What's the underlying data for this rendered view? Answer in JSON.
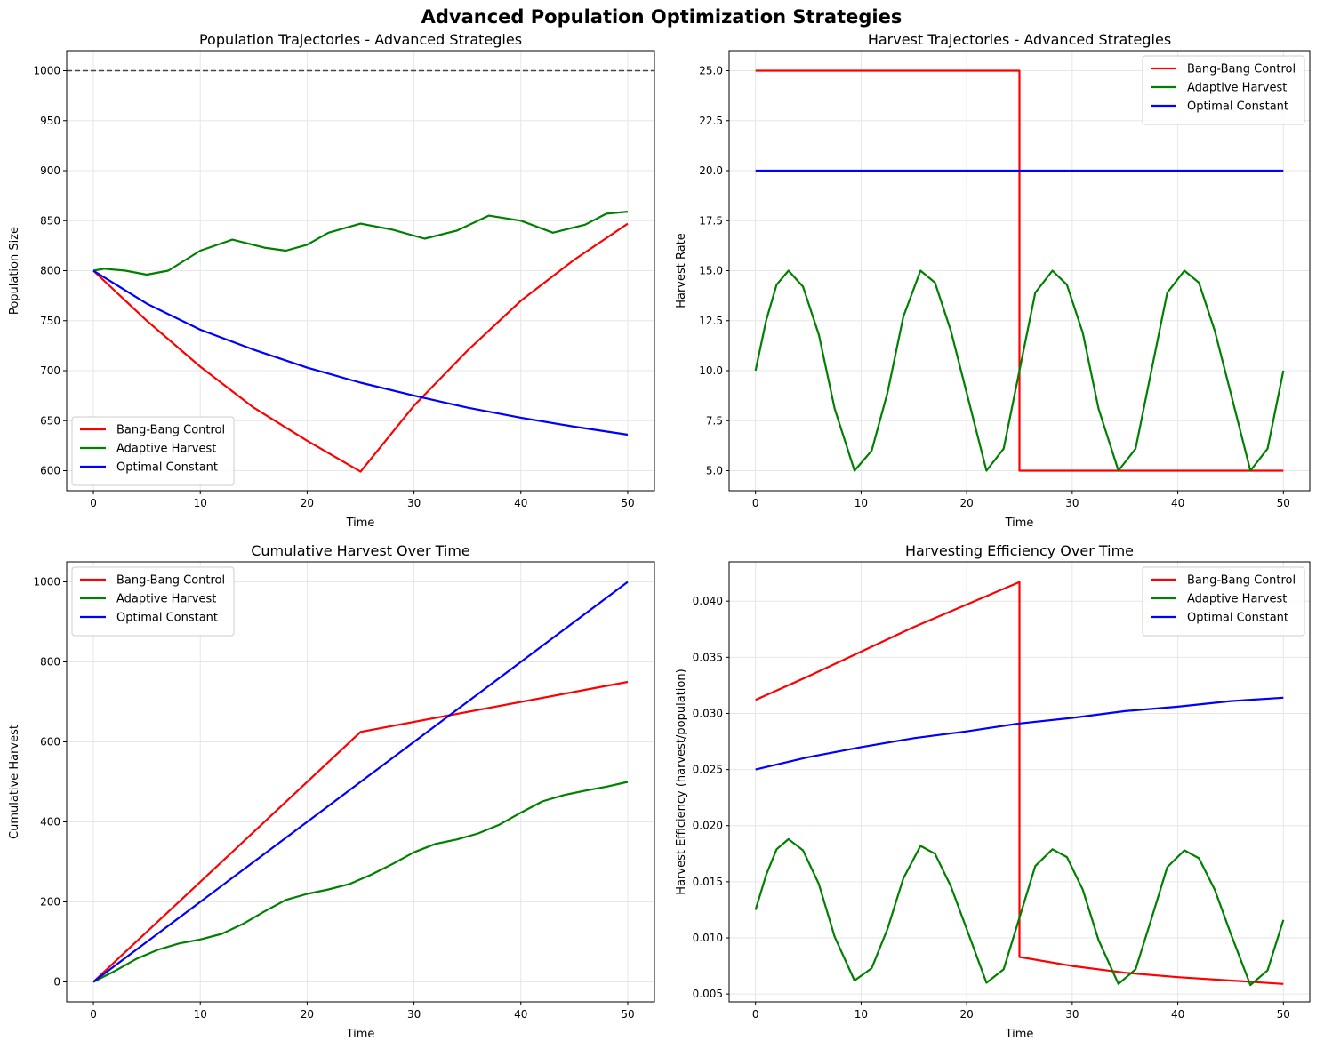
{
  "suptitle": "Advanced Population Optimization Strategies",
  "colors": {
    "bang_bang": "#ff0000",
    "adaptive": "#008000",
    "optimal": "#0000ff",
    "reference": "#444444"
  },
  "chart_data": [
    {
      "type": "line",
      "title": "Population Trajectories - Advanced Strategies",
      "xlabel": "Time",
      "ylabel": "Population Size",
      "xlim": [
        -2.5,
        52.5
      ],
      "ylim": [
        580,
        1020
      ],
      "xticks": [
        0,
        10,
        20,
        30,
        40,
        50
      ],
      "yticks": [
        600,
        650,
        700,
        750,
        800,
        850,
        900,
        950,
        1000
      ],
      "grid": true,
      "legend_position": "lower-left",
      "reference_line": {
        "y": 1000,
        "style": "dashed"
      },
      "series": [
        {
          "name": "Bang-Bang Control",
          "color": "#ff0000",
          "x": [
            0,
            5,
            10,
            15,
            20,
            25,
            30,
            35,
            40,
            45,
            50
          ],
          "y": [
            800,
            750,
            704,
            663,
            630,
            599,
            665,
            720,
            770,
            811,
            847
          ]
        },
        {
          "name": "Adaptive Harvest",
          "color": "#008000",
          "x": [
            0,
            1,
            3,
            5,
            7,
            10,
            13,
            16,
            18,
            20,
            22,
            25,
            28,
            31,
            34,
            37,
            40,
            43,
            46,
            48,
            50
          ],
          "y": [
            800,
            802,
            800,
            796,
            800,
            820,
            831,
            823,
            820,
            826,
            838,
            847,
            841,
            832,
            840,
            855,
            850,
            838,
            846,
            857,
            859
          ]
        },
        {
          "name": "Optimal Constant",
          "color": "#0000ff",
          "x": [
            0,
            5,
            10,
            15,
            20,
            25,
            30,
            35,
            40,
            45,
            50
          ],
          "y": [
            800,
            767,
            741,
            721,
            703,
            688,
            675,
            663,
            653,
            644,
            636
          ]
        }
      ]
    },
    {
      "type": "line",
      "title": "Harvest Trajectories - Advanced Strategies",
      "xlabel": "Time",
      "ylabel": "Harvest Rate",
      "xlim": [
        -2.5,
        52.5
      ],
      "ylim": [
        4.0,
        26.0
      ],
      "xticks": [
        0,
        10,
        20,
        30,
        40,
        50
      ],
      "yticks": [
        "5.0",
        "7.5",
        "10.0",
        "12.5",
        "15.0",
        "17.5",
        "20.0",
        "22.5",
        "25.0"
      ],
      "grid": true,
      "legend_position": "top-right",
      "series": [
        {
          "name": "Bang-Bang Control",
          "color": "#ff0000",
          "x": [
            0,
            25,
            25,
            50
          ],
          "y": [
            25,
            25,
            5,
            5
          ]
        },
        {
          "name": "Adaptive Harvest",
          "color": "#008000",
          "x": [
            0,
            1,
            2,
            3.125,
            4.5,
            6,
            7.5,
            9.375,
            11,
            12.5,
            14,
            15.625,
            17,
            18.5,
            20,
            21.875,
            23.5,
            25,
            26.5,
            28.125,
            29.5,
            31,
            32.5,
            34.375,
            36,
            37.5,
            39,
            40.625,
            42,
            43.5,
            45,
            46.875,
            48.5,
            50
          ],
          "y": [
            10,
            12.5,
            14.3,
            15,
            14.2,
            11.8,
            8.1,
            5,
            6,
            8.9,
            12.7,
            15,
            14.4,
            12.0,
            8.9,
            5,
            6.1,
            10,
            13.9,
            15,
            14.3,
            11.9,
            8.1,
            5,
            6.1,
            10,
            13.9,
            15,
            14.4,
            12.0,
            8.9,
            5,
            6.1,
            10
          ]
        },
        {
          "name": "Optimal Constant",
          "color": "#0000ff",
          "x": [
            0,
            50
          ],
          "y": [
            20,
            20
          ]
        }
      ]
    },
    {
      "type": "line",
      "title": "Cumulative Harvest Over Time",
      "xlabel": "Time",
      "ylabel": "Cumulative Harvest",
      "xlim": [
        -2.5,
        52.5
      ],
      "ylim": [
        -50,
        1050
      ],
      "xticks": [
        0,
        10,
        20,
        30,
        40,
        50
      ],
      "yticks": [
        0,
        200,
        400,
        600,
        800,
        1000
      ],
      "grid": true,
      "legend_position": "top-left",
      "series": [
        {
          "name": "Bang-Bang Control",
          "color": "#ff0000",
          "x": [
            0,
            25,
            50
          ],
          "y": [
            0,
            625,
            750
          ]
        },
        {
          "name": "Adaptive Harvest",
          "color": "#008000",
          "x": [
            0,
            2,
            4,
            6,
            8,
            10,
            12,
            14,
            16,
            18,
            20,
            22,
            24,
            26,
            28,
            30,
            32,
            34,
            36,
            38,
            40,
            42,
            44,
            46,
            48,
            50
          ],
          "y": [
            0,
            27,
            57,
            80,
            96,
            106,
            120,
            145,
            176,
            205,
            220,
            231,
            245,
            268,
            295,
            324,
            345,
            356,
            371,
            393,
            423,
            451,
            467,
            478,
            488,
            500
          ]
        },
        {
          "name": "Optimal Constant",
          "color": "#0000ff",
          "x": [
            0,
            50
          ],
          "y": [
            0,
            1000
          ]
        }
      ]
    },
    {
      "type": "line",
      "title": "Harvesting Efficiency Over Time",
      "xlabel": "Time",
      "ylabel": "Harvest Efficiency (harvest/population)",
      "xlim": [
        -2.5,
        52.5
      ],
      "ylim": [
        0.0043,
        0.0435
      ],
      "xticks": [
        0,
        10,
        20,
        30,
        40,
        50
      ],
      "yticks": [
        "0.005",
        "0.010",
        "0.015",
        "0.020",
        "0.025",
        "0.030",
        "0.035",
        "0.040"
      ],
      "grid": true,
      "legend_position": "top-right",
      "series": [
        {
          "name": "Bang-Bang Control",
          "color": "#ff0000",
          "x": [
            0,
            5,
            10,
            15,
            20,
            25,
            25,
            30,
            35,
            40,
            45,
            50
          ],
          "y": [
            0.0312,
            0.0333,
            0.0355,
            0.0377,
            0.0397,
            0.0417,
            0.0083,
            0.0075,
            0.0069,
            0.0065,
            0.0062,
            0.0059
          ]
        },
        {
          "name": "Adaptive Harvest",
          "color": "#008000",
          "x": [
            0,
            1,
            2,
            3.125,
            4.5,
            6,
            7.5,
            9.375,
            11,
            12.5,
            14,
            15.625,
            17,
            18.5,
            20,
            21.875,
            23.5,
            25,
            26.5,
            28.125,
            29.5,
            31,
            32.5,
            34.375,
            36,
            37.5,
            39,
            40.625,
            42,
            43.5,
            45,
            46.875,
            48.5,
            50
          ],
          "y": [
            0.0125,
            0.0156,
            0.0179,
            0.0188,
            0.0178,
            0.0148,
            0.0101,
            0.0062,
            0.0073,
            0.0108,
            0.0153,
            0.0182,
            0.0175,
            0.0146,
            0.0108,
            0.006,
            0.0072,
            0.0118,
            0.0164,
            0.0179,
            0.0172,
            0.0143,
            0.0098,
            0.0059,
            0.0072,
            0.0117,
            0.0163,
            0.0178,
            0.0171,
            0.0143,
            0.0104,
            0.0058,
            0.0071,
            0.0116
          ]
        },
        {
          "name": "Optimal Constant",
          "color": "#0000ff",
          "x": [
            0,
            5,
            10,
            15,
            20,
            25,
            30,
            35,
            40,
            45,
            50
          ],
          "y": [
            0.025,
            0.0261,
            0.027,
            0.0278,
            0.0284,
            0.0291,
            0.0296,
            0.0302,
            0.0306,
            0.0311,
            0.0314
          ]
        }
      ]
    }
  ]
}
